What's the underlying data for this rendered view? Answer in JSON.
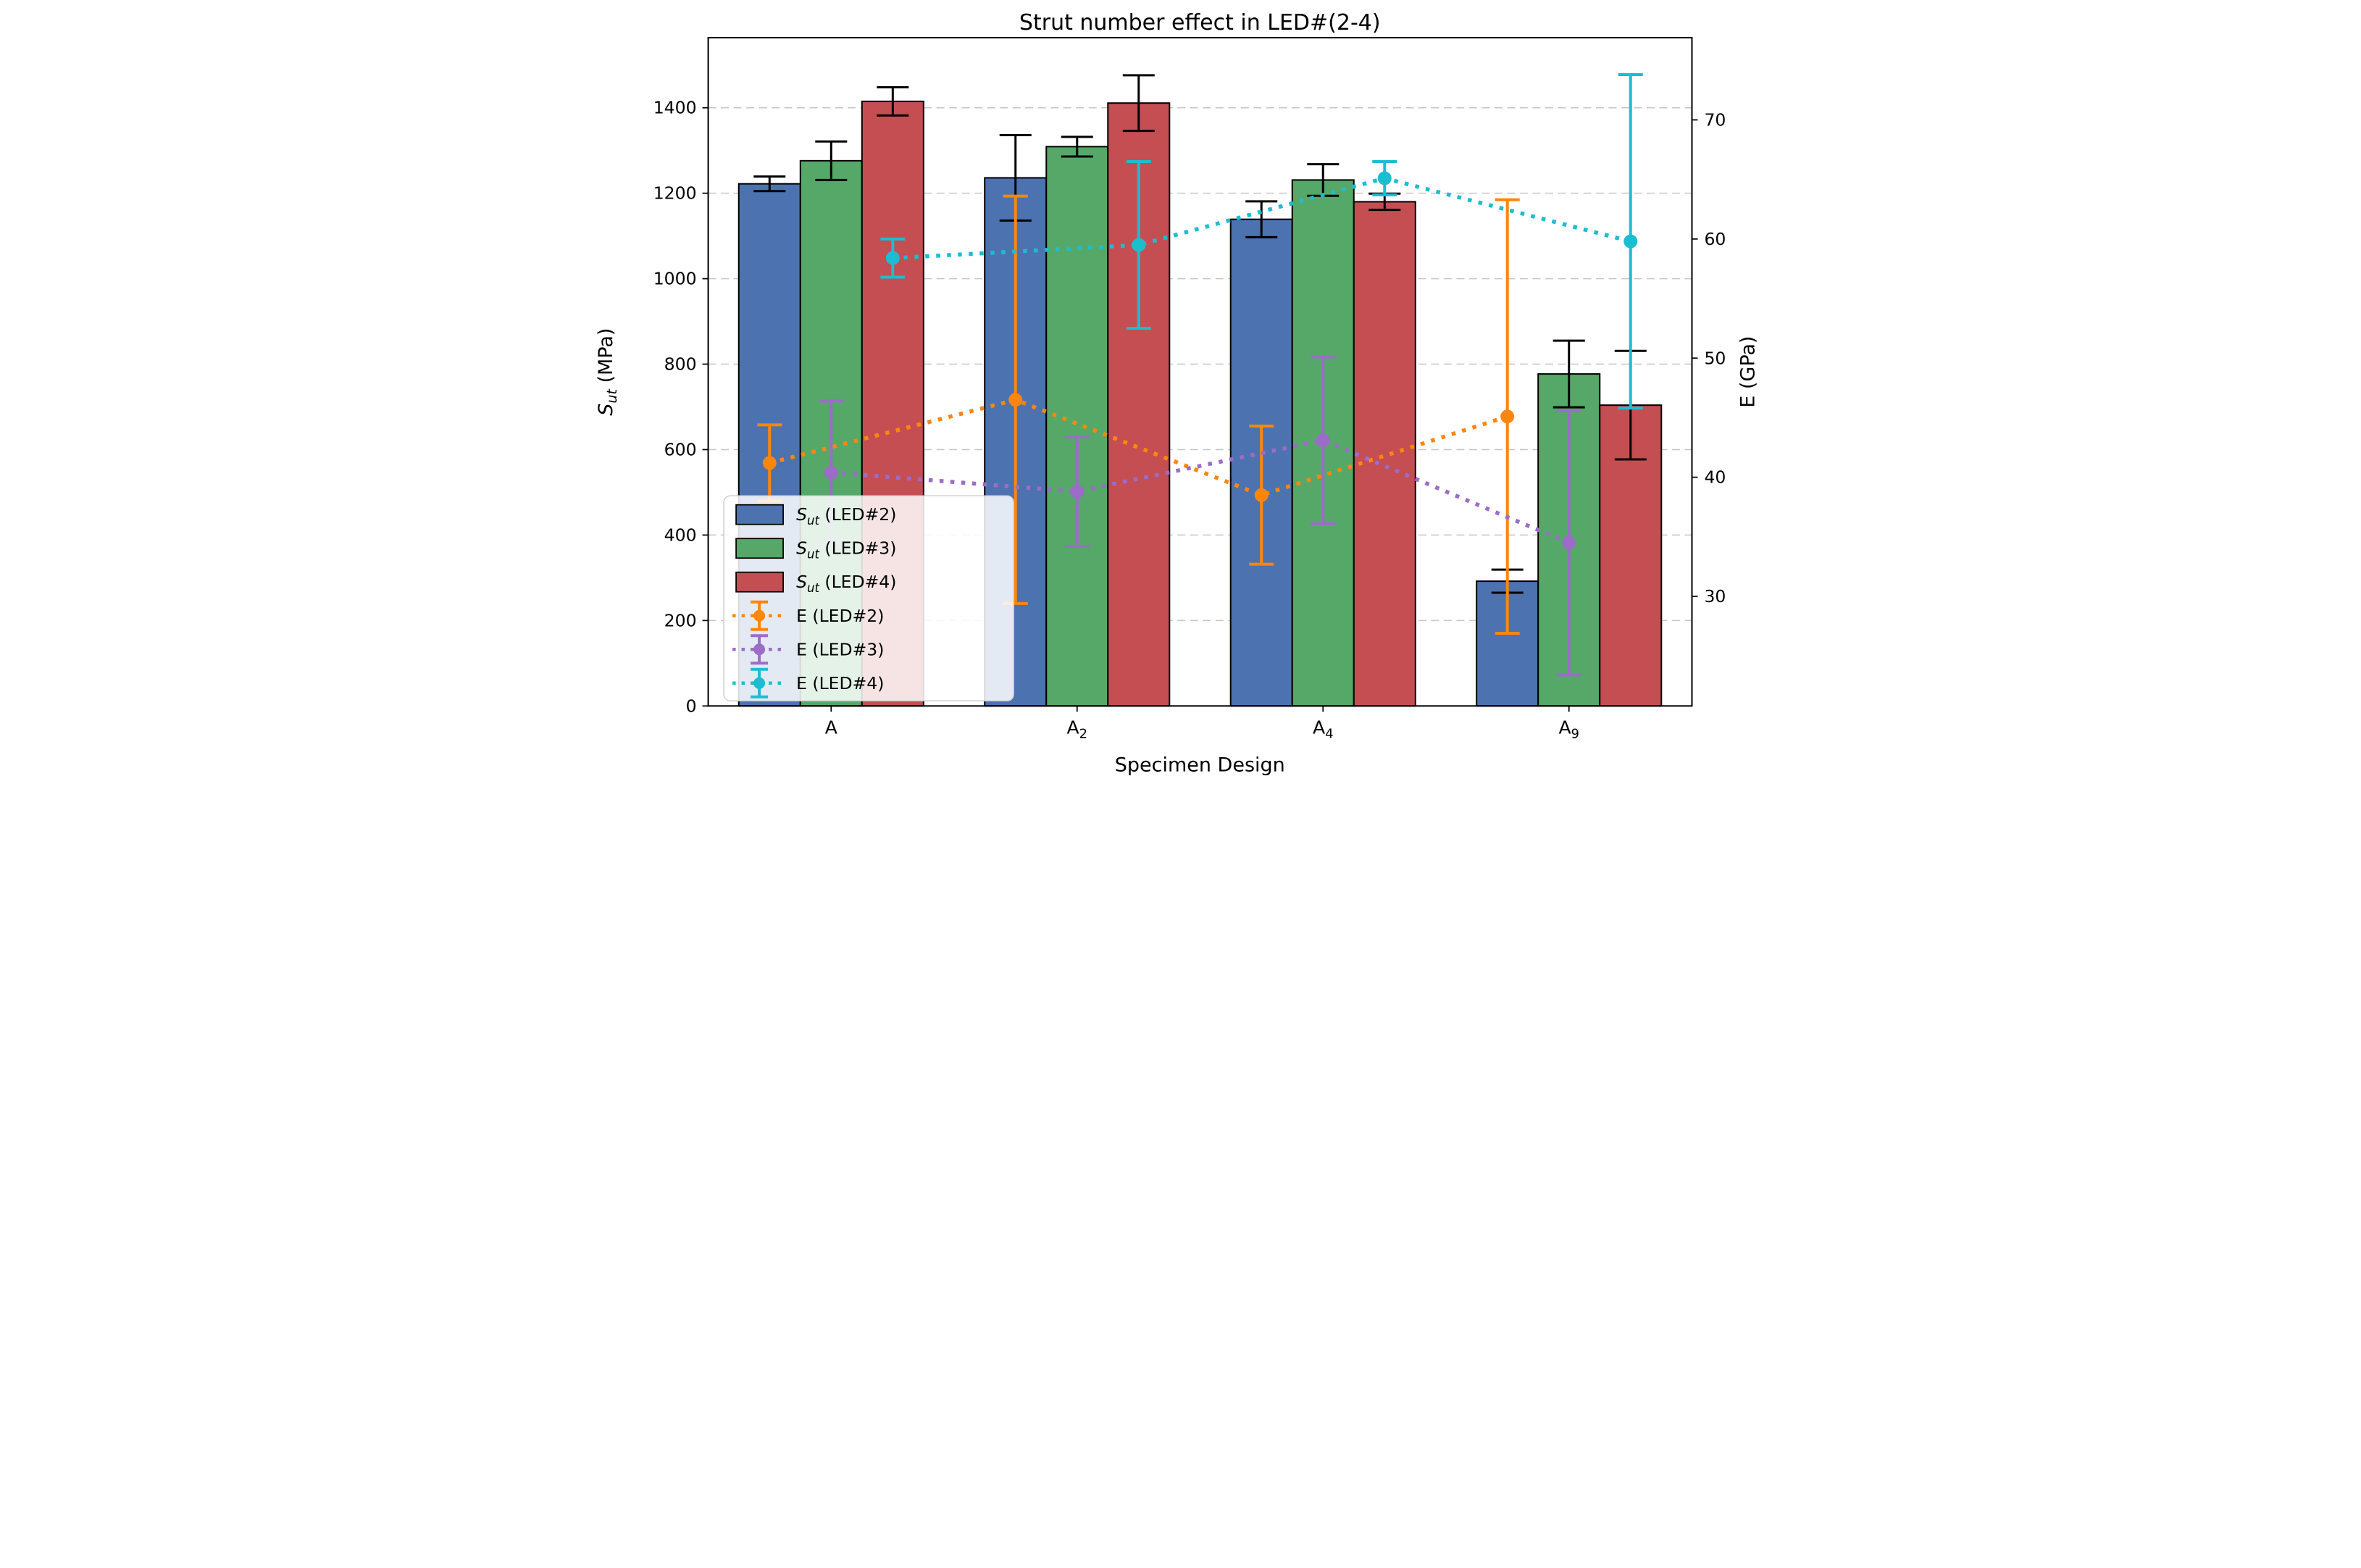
{
  "chart_data": {
    "type": "bar",
    "title": "Strut number effect in LED#(2-4)",
    "xlabel": "Specimen Design",
    "ylabel_left": "Sut (MPa)",
    "ylabel_left_parts": {
      "pre": "S",
      "sub": "ut",
      "post": " (MPa)"
    },
    "ylabel_right": "E (GPa)",
    "ylabel_right_parts": {
      "pre": "E",
      "sub": "",
      "post": " (GPa)"
    },
    "categories": [
      "A",
      "A2",
      "A4",
      "A9"
    ],
    "category_parts": [
      {
        "base": "A",
        "sub": ""
      },
      {
        "base": "A",
        "sub": "2"
      },
      {
        "base": "A",
        "sub": "4"
      },
      {
        "base": "A",
        "sub": "9"
      }
    ],
    "bar_series": [
      {
        "name": "Sut (LED#2)",
        "label_parts": {
          "pre": "S",
          "sub": "ut",
          "post": " (LED#2)"
        },
        "color": "#4C72B0",
        "values": [
          1222,
          1236,
          1139,
          292
        ],
        "errors": [
          17,
          100,
          42,
          27
        ]
      },
      {
        "name": "Sut (LED#3)",
        "label_parts": {
          "pre": "S",
          "sub": "ut",
          "post": " (LED#3)"
        },
        "color": "#55A868",
        "values": [
          1276,
          1309,
          1231,
          777
        ],
        "errors": [
          45,
          23,
          37,
          78
        ]
      },
      {
        "name": "Sut (LED#4)",
        "label_parts": {
          "pre": "S",
          "sub": "ut",
          "post": " (LED#4)"
        },
        "color": "#C44E52",
        "values": [
          1415,
          1411,
          1180,
          704
        ],
        "errors": [
          33,
          65,
          19,
          127
        ]
      }
    ],
    "line_series": [
      {
        "name": "E (LED#2)",
        "label_parts": {
          "pre": "E (LED#2)",
          "sub": "",
          "post": ""
        },
        "color": "#FF860D",
        "values": [
          41.2,
          46.5,
          38.5,
          45.1
        ],
        "errors": [
          3.2,
          17.1,
          5.8,
          18.2
        ]
      },
      {
        "name": "E (LED#3)",
        "label_parts": {
          "pre": "E (LED#3)",
          "sub": "",
          "post": ""
        },
        "color": "#9B6DC8",
        "values": [
          40.4,
          38.8,
          43.1,
          34.5
        ],
        "errors": [
          6.0,
          4.6,
          7.0,
          11.1
        ]
      },
      {
        "name": "E (LED#4)",
        "label_parts": {
          "pre": "E (LED#4)",
          "sub": "",
          "post": ""
        },
        "color": "#1CBDD1",
        "values": [
          58.4,
          59.5,
          65.1,
          59.8
        ],
        "errors": [
          1.6,
          7.0,
          1.4,
          14.0
        ]
      }
    ],
    "left_axis": {
      "label": "Sut (MPa)",
      "min": 0,
      "max": 1564,
      "ticks": [
        0,
        200,
        400,
        600,
        800,
        1000,
        1200,
        1400
      ]
    },
    "right_axis": {
      "label": "E (GPa)",
      "min": 20.8,
      "max": 76.9,
      "ticks": [
        30,
        40,
        50,
        60,
        70
      ]
    },
    "grid": true,
    "grid_color": "#c6c6c6",
    "legend_position": "lower left",
    "bar_edge_color": "#000000",
    "error_bar_color": "#000000"
  }
}
